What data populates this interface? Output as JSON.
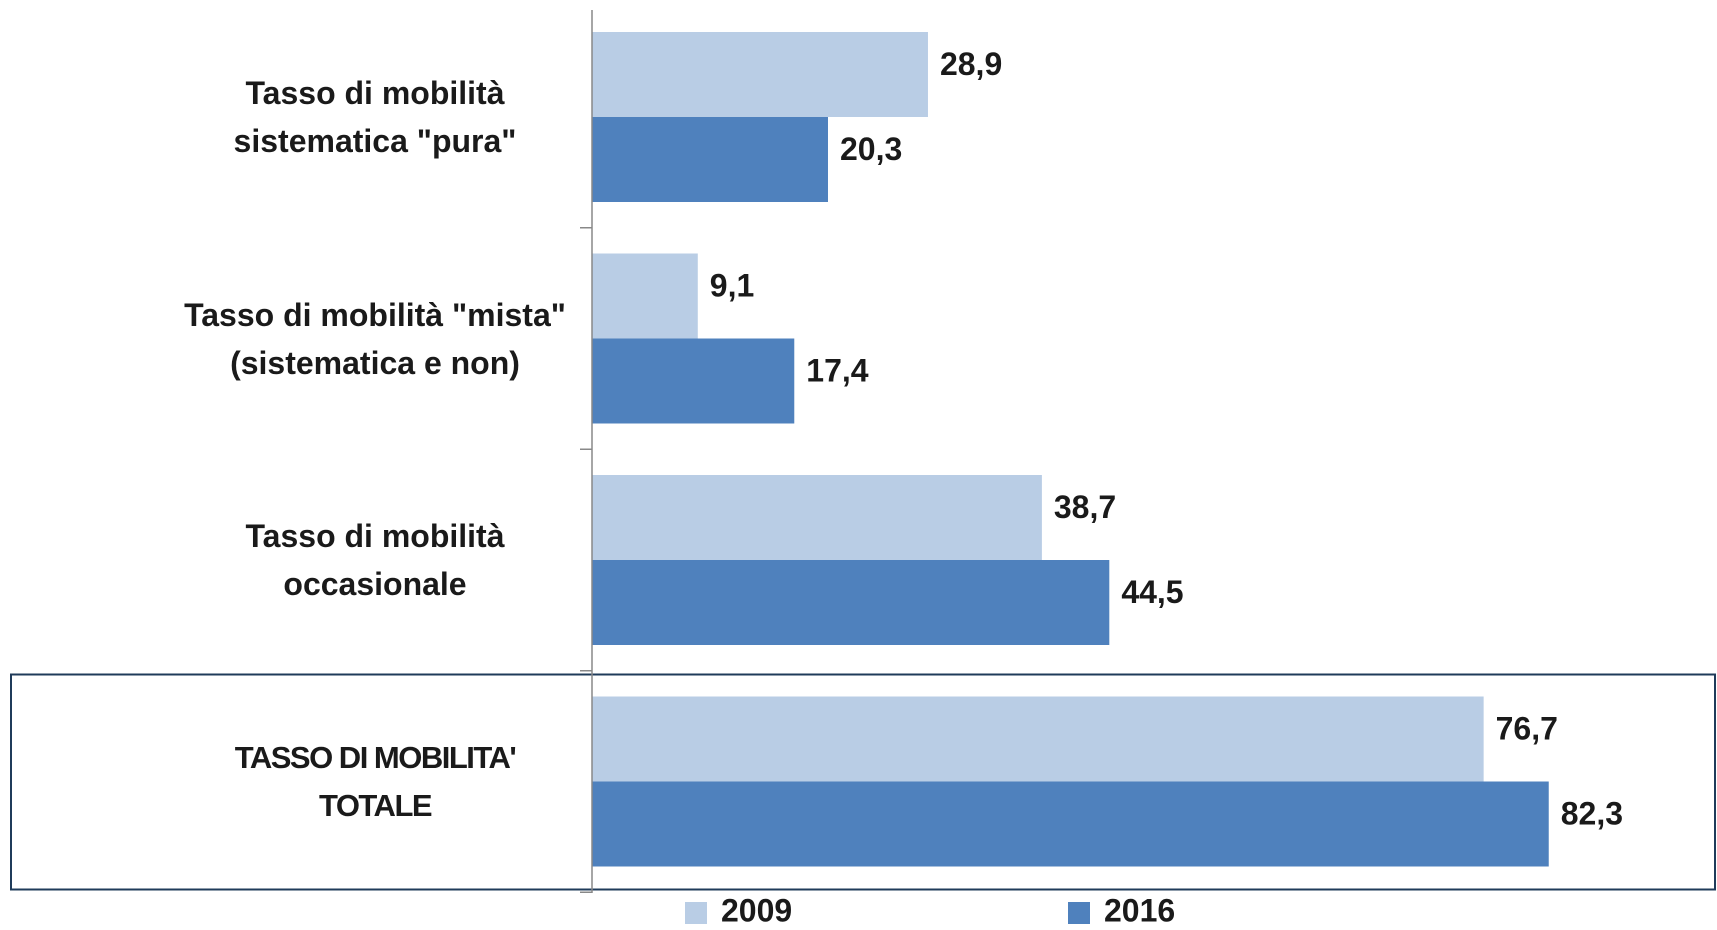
{
  "chart_data": {
    "type": "hbar",
    "categories": [
      "Tasso di mobilità sistematica \"pura\"",
      "Tasso di mobilità \"mista\" (sistematica e non)",
      "Tasso di mobilità occasionale",
      "TASSO DI MOBILITA' TOTALE"
    ],
    "series": [
      {
        "name": "2009",
        "color": "#b9cde5",
        "values": [
          28.9,
          9.1,
          38.7,
          76.7
        ],
        "value_labels": [
          "28,9",
          "9,1",
          "38,7",
          "76,7"
        ]
      },
      {
        "name": "2016",
        "color": "#4f81bd",
        "values": [
          20.3,
          17.4,
          44.5,
          82.3
        ],
        "value_labels": [
          "20,3",
          "17,4",
          "44,5",
          "82,3"
        ]
      }
    ],
    "xlim": [
      0,
      96
    ],
    "legend": "bottom",
    "highlight_category": 3
  }
}
